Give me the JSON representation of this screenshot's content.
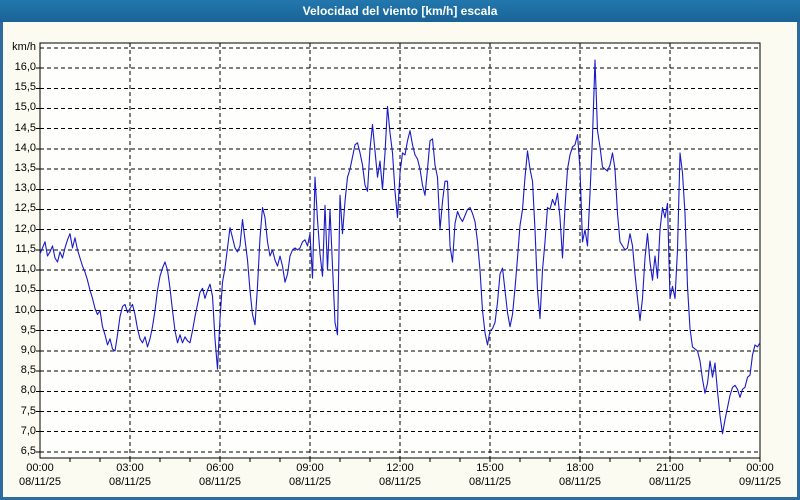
{
  "window": {
    "title": "Velocidad del viento [km/h] escala",
    "titlebar_color": "#1d6da1",
    "border_color": "#2e6b9e",
    "background_color": "#fbfbf2"
  },
  "chart_data": {
    "type": "line",
    "title": "Velocidad del viento [km/h] escala",
    "unit_label": "km/h",
    "line_color": "#1a1ac8",
    "grid": "dashed-black",
    "legend": "none",
    "plot_background": "#fefefc",
    "ylim": [
      6.35,
      16.62
    ],
    "xlabel": "",
    "ylabel": "km/h",
    "y_grid_extra": [
      16.5
    ],
    "y_tick_values": [
      16.0,
      15.5,
      15.0,
      14.5,
      14.0,
      13.5,
      13.0,
      12.5,
      12.0,
      11.5,
      11.0,
      10.5,
      10.0,
      9.5,
      9.0,
      8.5,
      8.0,
      7.5,
      7.0,
      6.5
    ],
    "y_tick_labels": [
      "16,0",
      "15,5",
      "15,0",
      "14,5",
      "14,0",
      "13,5",
      "13,0",
      "12,5",
      "12,0",
      "11,5",
      "11,0",
      "10,5",
      "10,0",
      "9,5",
      "9,0",
      "8,5",
      "8,0",
      "7,5",
      "7,0",
      "6,5"
    ],
    "x_major_every_min": 180,
    "x_minor_every_min": 60,
    "x_tick_labels": [
      {
        "time": "00:00",
        "date": "08/11/25"
      },
      {
        "time": "03:00",
        "date": "08/11/25"
      },
      {
        "time": "06:00",
        "date": "08/11/25"
      },
      {
        "time": "09:00",
        "date": "08/11/25"
      },
      {
        "time": "12:00",
        "date": "08/11/25"
      },
      {
        "time": "15:00",
        "date": "08/11/25"
      },
      {
        "time": "18:00",
        "date": "08/11/25"
      },
      {
        "time": "21:00",
        "date": "08/11/25"
      },
      {
        "time": "00:00",
        "date": "09/11/25"
      }
    ],
    "series": [
      {
        "name": "Velocidad del viento",
        "start_min": 0,
        "step_min": 5,
        "values_kmh": [
          11.4,
          11.55,
          11.7,
          11.35,
          11.45,
          11.6,
          11.3,
          11.2,
          11.45,
          11.3,
          11.55,
          11.75,
          11.9,
          11.55,
          11.8,
          11.5,
          11.3,
          11.1,
          10.95,
          10.75,
          10.5,
          10.3,
          10.05,
          9.9,
          10.0,
          9.6,
          9.4,
          9.15,
          9.3,
          9.05,
          9.0,
          9.4,
          9.85,
          10.1,
          10.15,
          9.95,
          10.05,
          10.15,
          9.9,
          9.55,
          9.3,
          9.2,
          9.35,
          9.1,
          9.3,
          9.6,
          10.0,
          10.5,
          10.85,
          11.05,
          11.2,
          11.0,
          10.55,
          10.0,
          9.5,
          9.2,
          9.4,
          9.2,
          9.35,
          9.25,
          9.2,
          9.5,
          9.85,
          10.15,
          10.45,
          10.55,
          10.3,
          10.5,
          10.65,
          10.35,
          9.3,
          8.55,
          9.8,
          10.7,
          11.05,
          11.55,
          12.05,
          11.8,
          11.55,
          11.45,
          11.6,
          12.25,
          11.75,
          11.25,
          10.5,
          9.9,
          9.65,
          10.6,
          11.8,
          12.55,
          12.3,
          11.7,
          11.35,
          11.5,
          11.25,
          11.1,
          11.35,
          11.1,
          10.7,
          10.9,
          11.35,
          11.5,
          11.55,
          11.5,
          11.55,
          11.7,
          11.75,
          11.6,
          11.9,
          10.8,
          13.3,
          12.25,
          11.4,
          10.85,
          12.6,
          11.0,
          12.5,
          11.1,
          9.7,
          9.4,
          12.85,
          11.9,
          12.7,
          13.3,
          13.5,
          13.8,
          14.1,
          14.15,
          13.9,
          13.6,
          13.1,
          12.95,
          14.0,
          14.6,
          13.95,
          13.3,
          13.7,
          13.0,
          13.9,
          15.05,
          14.4,
          13.9,
          12.95,
          12.3,
          13.4,
          13.9,
          13.85,
          14.2,
          14.45,
          14.1,
          13.85,
          13.75,
          13.5,
          13.1,
          12.85,
          13.5,
          14.2,
          14.25,
          13.6,
          13.3,
          12.0,
          12.7,
          13.2,
          13.2,
          11.6,
          11.2,
          12.15,
          12.45,
          12.3,
          12.2,
          12.35,
          12.5,
          12.55,
          12.4,
          12.2,
          11.7,
          11.0,
          10.0,
          9.45,
          9.15,
          9.5,
          9.55,
          9.7,
          10.2,
          10.9,
          11.05,
          10.5,
          9.95,
          9.6,
          9.9,
          10.55,
          11.3,
          12.1,
          12.5,
          13.3,
          13.95,
          13.5,
          13.2,
          12.0,
          10.5,
          9.8,
          11.0,
          11.7,
          12.55,
          12.5,
          12.75,
          12.6,
          12.9,
          12.3,
          11.3,
          12.55,
          13.5,
          13.85,
          14.05,
          14.1,
          14.35,
          13.5,
          11.7,
          12.0,
          11.6,
          12.9,
          14.3,
          16.2,
          14.45,
          14.05,
          13.55,
          13.5,
          13.45,
          13.6,
          13.9,
          13.5,
          12.4,
          11.7,
          11.6,
          11.5,
          11.55,
          11.9,
          11.6,
          10.9,
          10.3,
          9.75,
          10.3,
          11.3,
          11.9,
          11.2,
          10.75,
          11.35,
          10.8,
          12.0,
          12.55,
          12.3,
          12.65,
          10.3,
          10.6,
          10.3,
          11.5,
          13.9,
          13.4,
          12.4,
          10.6,
          9.55,
          9.1,
          9.05,
          9.0,
          8.75,
          8.3,
          7.95,
          8.2,
          8.75,
          8.35,
          8.7,
          8.0,
          7.4,
          6.95,
          7.3,
          7.6,
          7.9,
          8.1,
          8.15,
          8.05,
          7.85,
          8.05,
          8.1,
          8.35,
          8.4,
          8.9,
          9.15,
          9.1,
          9.2
        ]
      }
    ]
  }
}
